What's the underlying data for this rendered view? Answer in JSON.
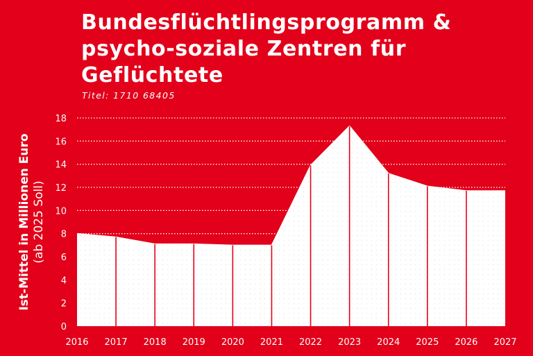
{
  "title": "Bundesflüchtlingsprogramm & psycho-soziale Zentren für Geflüchtete",
  "subtitle": "Titel: 1710 68405",
  "ylabel_line1": "Ist-Mittel in Millionen Euro",
  "ylabel_line2": "(ab 2025 Soll)",
  "colors": {
    "background": "#e2001a",
    "area": "#ffffff",
    "text": "#ffffff"
  },
  "chart_data": {
    "type": "area",
    "x": [
      "2016",
      "2017",
      "2018",
      "2019",
      "2020",
      "2021",
      "2022",
      "2023",
      "2024",
      "2025",
      "2026",
      "2027"
    ],
    "series": [
      {
        "values": [
          8.0,
          7.7,
          7.1,
          7.1,
          7.0,
          7.0,
          13.9,
          17.3,
          13.2,
          12.1,
          11.7,
          11.7
        ]
      }
    ],
    "yticks": [
      0,
      2,
      4,
      6,
      8,
      10,
      12,
      14,
      16,
      18
    ],
    "ylim": [
      0,
      18
    ],
    "ylabel": "Ist-Mittel in Millionen Euro (ab 2025 Soll)",
    "grid": true
  }
}
